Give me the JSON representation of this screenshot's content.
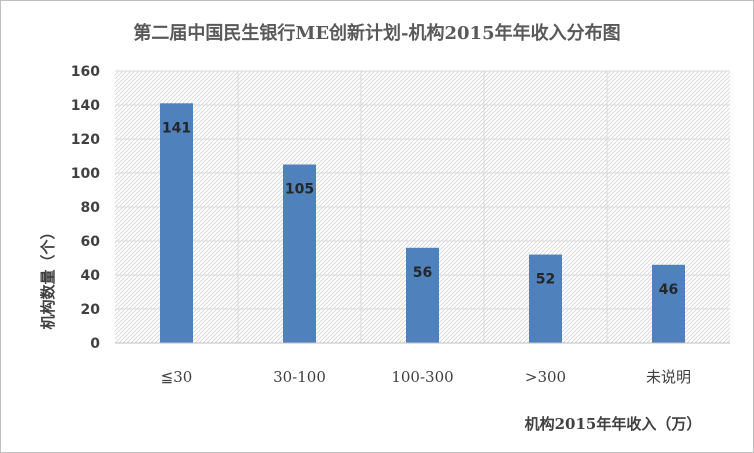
{
  "chart_data": {
    "type": "bar",
    "title": "第二届中国民生银行ME创新计划-机构2015年年收入分布图",
    "categories": [
      "≦30",
      "30-100",
      "100-300",
      ">300",
      "未说明"
    ],
    "values": [
      141,
      105,
      56,
      52,
      46
    ],
    "data_labels": [
      "141",
      "105",
      "56",
      "52",
      "46"
    ],
    "xlabel": "机构2015年年收入（万）",
    "ylabel": "机构数量（个）",
    "ylim": [
      0,
      160
    ],
    "yticks": [
      "0",
      "20",
      "40",
      "60",
      "80",
      "100",
      "120",
      "140",
      "160"
    ],
    "grid": true,
    "legend": "none",
    "bar_color": "#4f81bd",
    "plot_background": "hatched-light-gray"
  }
}
